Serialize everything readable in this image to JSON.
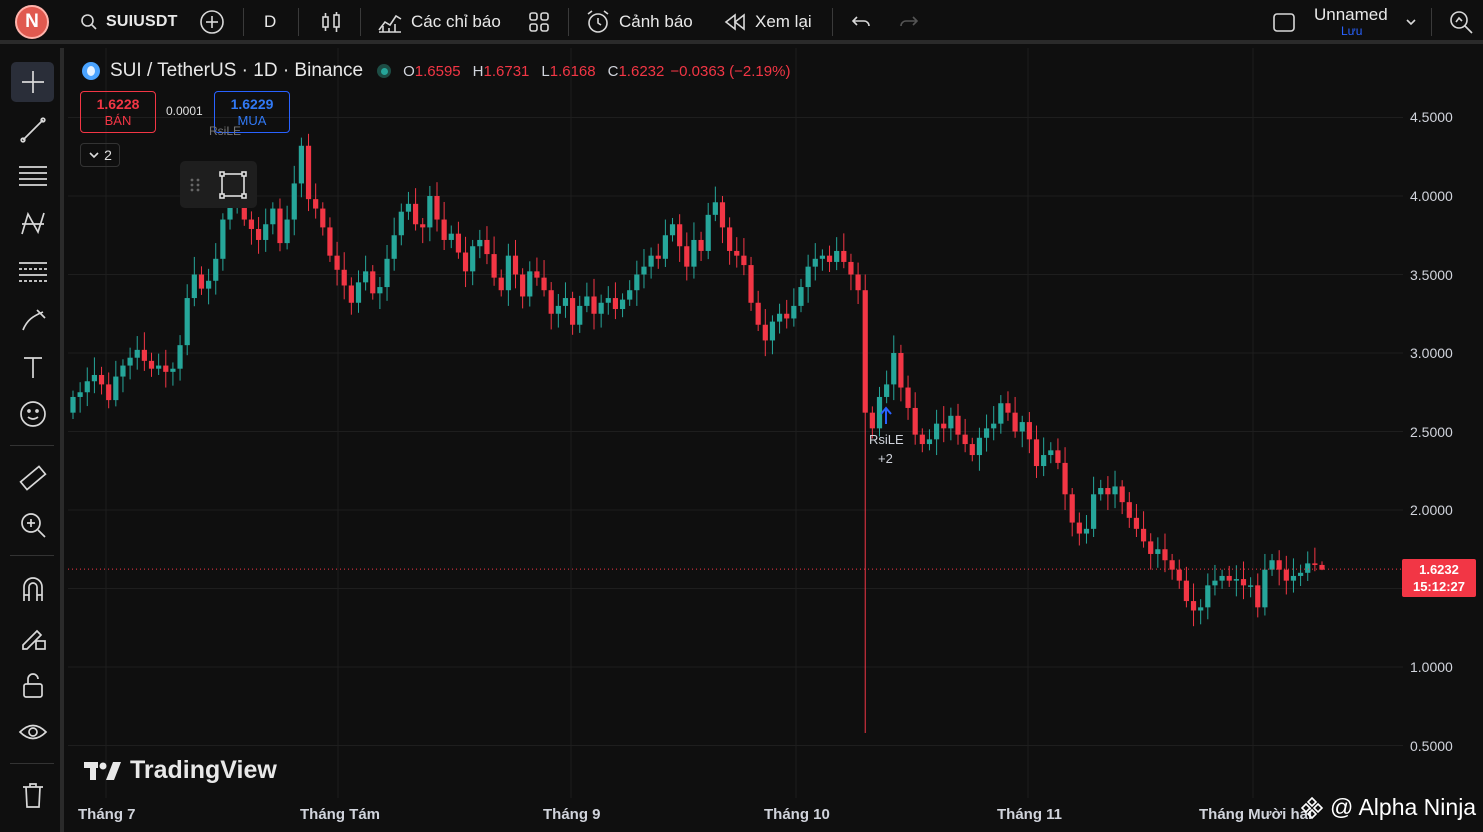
{
  "topbar": {
    "avatar_letter": "N",
    "symbol": "SUIUSDT",
    "interval": "D",
    "indicators_label": "Các chỉ báo",
    "alerts_label": "Cảnh báo",
    "replay_label": "Xem lại",
    "layout_name": "Unnamed",
    "layout_save": "Lưu"
  },
  "legend": {
    "title": "SUI / TetherUS · 1D · Binance",
    "o_label": "O",
    "o_value": "1.6595",
    "h_label": "H",
    "h_value": "1.6731",
    "l_label": "L",
    "l_value": "1.6168",
    "c_label": "C",
    "c_value": "1.6232",
    "change": "−0.0363 (−2.19%)"
  },
  "trade": {
    "sell_price": "1.6228",
    "sell_label": "BÁN",
    "spread": "0.0001",
    "buy_price": "1.6229",
    "buy_label": "MUA",
    "collapsed_count": "2"
  },
  "price_tag": {
    "price": "1.6232",
    "countdown": "15:12:27"
  },
  "annotations": {
    "rsile": "RsiLE",
    "plus": "+2",
    "rsile_faded": "RsiLE"
  },
  "branding": {
    "tradingview": "TradingView",
    "watermark": "@ Alpha Ninja"
  },
  "colors": {
    "up": "#26a69a",
    "down": "#f23645",
    "grid": "#1e1e1e",
    "accent": "#2962ff"
  },
  "chart_data": {
    "type": "candlestick",
    "symbol": "SUI / TetherUS",
    "interval": "1D",
    "exchange": "Binance",
    "y_ticks": [
      "4.5000",
      "4.0000",
      "3.5000",
      "3.0000",
      "2.5000",
      "2.0000",
      "1.0000",
      "0.5000"
    ],
    "y_tick_values": [
      4.5,
      4.0,
      3.5,
      3.0,
      2.5,
      2.0,
      1.0,
      0.5
    ],
    "x_ticks": [
      "Tháng 7",
      "Tháng Tám",
      "Tháng 9",
      "Tháng 10",
      "Tháng 11",
      "Tháng Mười hai"
    ],
    "last_price": 1.6232,
    "closes": [
      2.72,
      2.75,
      2.82,
      2.86,
      2.8,
      2.7,
      2.85,
      2.92,
      2.97,
      3.02,
      2.95,
      2.9,
      2.92,
      2.88,
      2.9,
      3.05,
      3.35,
      3.5,
      3.41,
      3.46,
      3.6,
      3.85,
      3.94,
      4.02,
      3.85,
      3.79,
      3.72,
      3.82,
      3.92,
      3.7,
      3.85,
      4.08,
      4.32,
      3.98,
      3.92,
      3.8,
      3.62,
      3.53,
      3.43,
      3.32,
      3.45,
      3.52,
      3.38,
      3.42,
      3.6,
      3.75,
      3.9,
      3.95,
      3.82,
      3.8,
      4.0,
      3.85,
      3.72,
      3.76,
      3.64,
      3.52,
      3.68,
      3.72,
      3.63,
      3.48,
      3.4,
      3.62,
      3.5,
      3.36,
      3.52,
      3.48,
      3.4,
      3.25,
      3.3,
      3.35,
      3.18,
      3.3,
      3.36,
      3.25,
      3.32,
      3.35,
      3.28,
      3.34,
      3.4,
      3.5,
      3.55,
      3.62,
      3.6,
      3.75,
      3.82,
      3.68,
      3.55,
      3.72,
      3.65,
      3.88,
      3.96,
      3.8,
      3.65,
      3.62,
      3.56,
      3.32,
      3.18,
      3.08,
      3.2,
      3.25,
      3.22,
      3.3,
      3.42,
      3.55,
      3.6,
      3.62,
      3.58,
      3.65,
      3.58,
      3.5,
      3.4,
      2.62,
      2.52,
      2.72,
      2.8,
      3.0,
      2.78,
      2.65,
      2.48,
      2.42,
      2.45,
      2.55,
      2.52,
      2.6,
      2.48,
      2.42,
      2.35,
      2.46,
      2.52,
      2.55,
      2.68,
      2.62,
      2.5,
      2.56,
      2.45,
      2.28,
      2.35,
      2.38,
      2.3,
      2.1,
      1.92,
      1.85,
      1.88,
      2.1,
      2.14,
      2.1,
      2.15,
      2.05,
      1.95,
      1.88,
      1.8,
      1.72,
      1.75,
      1.68,
      1.62,
      1.55,
      1.42,
      1.36,
      1.38,
      1.52,
      1.55,
      1.58,
      1.55,
      1.56,
      1.52,
      1.52,
      1.38,
      1.62,
      1.68,
      1.62,
      1.55,
      1.58,
      1.6,
      1.66,
      1.65,
      1.62
    ]
  }
}
